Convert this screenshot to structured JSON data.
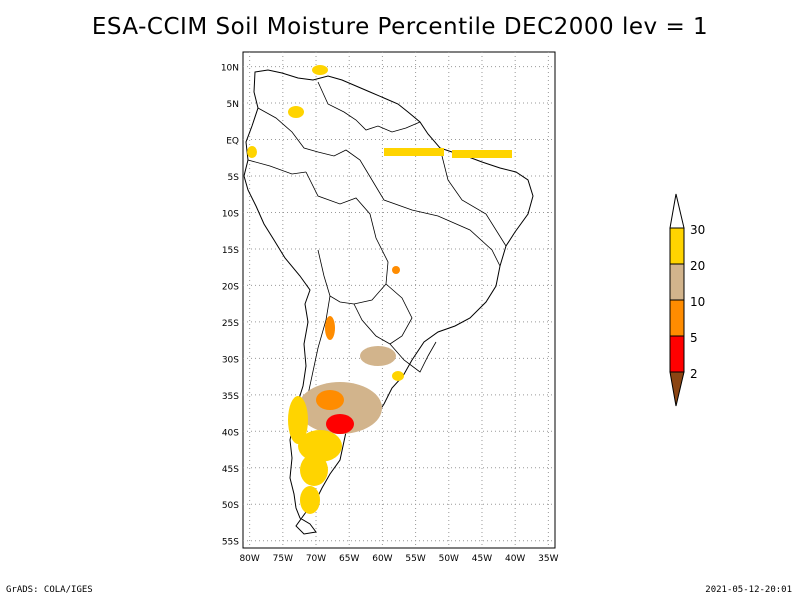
{
  "title": "ESA-CCIM Soil Moisture Percentile DEC2000 lev = 1",
  "footer": {
    "left": "GrADS: COLA/IGES",
    "right": "2021-05-12-20:01"
  },
  "map": {
    "region": "South America",
    "grid": "dotted",
    "lat_ticks": [
      "10N",
      "5N",
      "EQ",
      "5S",
      "10S",
      "15S",
      "20S",
      "25S",
      "30S",
      "35S",
      "40S",
      "45S",
      "50S",
      "55S"
    ],
    "lon_ticks": [
      "80W",
      "75W",
      "70W",
      "65W",
      "60W",
      "55W",
      "50W",
      "45W",
      "40W",
      "35W"
    ],
    "lat_range": [
      -56,
      12
    ],
    "lon_range": [
      -81,
      -34
    ]
  },
  "legend": {
    "labels": [
      "30",
      "20",
      "10",
      "5",
      "2"
    ],
    "colors": {
      "above_30": "#ffffff",
      "20_30": "#ffd400",
      "10_20": "#d2b48c",
      "5_10": "#ff8c00",
      "2_5": "#ff0000",
      "below_2": "#8b4513"
    }
  }
}
